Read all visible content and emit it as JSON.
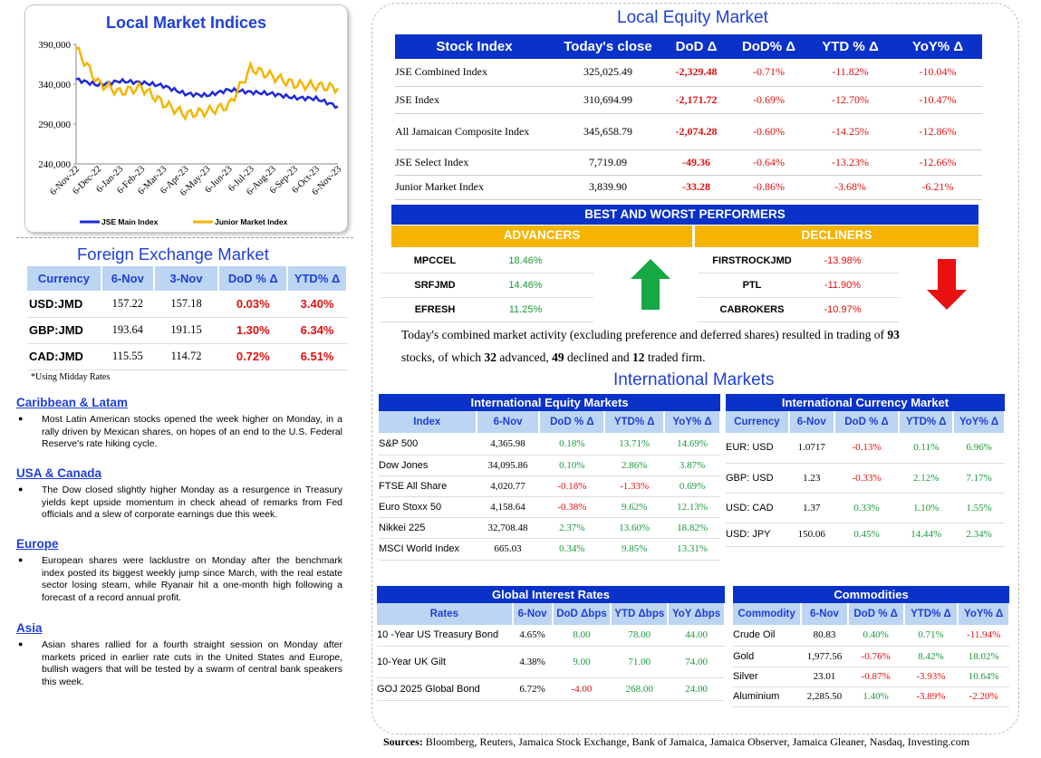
{
  "chart_data": {
    "type": "line",
    "title": "Local Market Indices",
    "categories": [
      "6-Nov-22",
      "6-Dec-22",
      "6-Jan-23",
      "6-Feb-23",
      "6-Mar-23",
      "6-Apr-23",
      "6-May-23",
      "6-Jun-23",
      "6-Jul-23",
      "6-Aug-23",
      "6-Sep-23",
      "6-Oct-23",
      "6-Nov-23"
    ],
    "yticks": [
      "390,000",
      "340,000",
      "290,000",
      "240,000"
    ],
    "ylim": [
      240000,
      390000
    ],
    "series": [
      {
        "name": "JSE Main Index",
        "color": "#1f2ad4",
        "values": [
          346000,
          339000,
          344000,
          342000,
          338000,
          328000,
          326000,
          333000,
          330000,
          328000,
          323000,
          322000,
          312000
        ]
      },
      {
        "name": "Junior Market Index",
        "color": "#f5b400",
        "values": [
          385000,
          342000,
          330000,
          336000,
          316000,
          302000,
          306000,
          313000,
          360000,
          350000,
          340000,
          338000,
          335000
        ]
      }
    ]
  },
  "fx": {
    "title": "Foreign Exchange Market",
    "headers": [
      "Currency",
      "6-Nov",
      "3-Nov",
      "DoD % Δ",
      "YTD% Δ"
    ],
    "rows": [
      {
        "c": "USD:JMD",
        "a": "157.22",
        "b": "157.18",
        "d": "0.03%",
        "y": "3.40%"
      },
      {
        "c": "GBP:JMD",
        "a": "193.64",
        "b": "191.15",
        "d": "1.30%",
        "y": "6.34%"
      },
      {
        "c": "CAD:JMD",
        "a": "115.55",
        "b": "114.72",
        "d": "0.72%",
        "y": "6.51%"
      }
    ],
    "note": "*Using Midday Rates"
  },
  "news": [
    {
      "h": "Caribbean & Latam",
      "t": "Most Latin American stocks opened the week higher on Monday, in a rally driven by Mexican shares, on hopes of an end to the U.S. Federal Reserve's rate hiking cycle."
    },
    {
      "h": "USA & Canada",
      "t": "The Dow closed slightly higher Monday as a resurgence in Treasury yields kept upside momentum in check ahead of remarks from Fed officials and a slew of corporate earnings due this week."
    },
    {
      "h": "Europe",
      "t": "European shares were lacklustre on Monday after the benchmark index posted its biggest weekly jump since March, with the real estate sector losing steam, while Ryanair hit a one-month high following a forecast of a record annual profit."
    },
    {
      "h": "Asia",
      "t": "Asian shares rallied for a fourth straight session on Monday after markets priced in earlier rate cuts in the United States and Europe, bullish wagers that will be tested by a swarm of central bank speakers this week."
    }
  ],
  "equity": {
    "title": "Local Equity Market",
    "headers": [
      "Stock Index",
      "Today's close",
      "DoD  Δ",
      "DoD% Δ",
      "YTD % Δ",
      "YoY% Δ"
    ],
    "rows": [
      {
        "n": "JSE Combined Index",
        "c": "325,025.49",
        "d": "-2,329.48",
        "p": "-0.71%",
        "y": "-11.82%",
        "o": "-10.04%"
      },
      {
        "n": "JSE Index",
        "c": "310,694.99",
        "d": "-2,171.72",
        "p": "-0.69%",
        "y": "-12.70%",
        "o": "-10.47%"
      },
      {
        "n": "All Jamaican Composite Index",
        "c": "345,658.79",
        "d": "-2,074.28",
        "p": "-0.60%",
        "y": "-14.25%",
        "o": "-12.86%"
      },
      {
        "n": "JSE Select Index",
        "c": "7,719.09",
        "d": "-49.36",
        "p": "-0.64%",
        "y": "-13.23%",
        "o": "-12.66%"
      },
      {
        "n": "Junior Market Index",
        "c": "3,839.90",
        "d": "-33.28",
        "p": "-0.86%",
        "y": "-3.68%",
        "o": "-6.21%"
      }
    ]
  },
  "performers": {
    "title": "BEST AND WORST PERFORMERS",
    "adv_label": "ADVANCERS",
    "dec_label": "DECLINERS",
    "advancers": [
      {
        "n": "MPCCEL",
        "v": "18.46%"
      },
      {
        "n": "SRFJMD",
        "v": "14.46%"
      },
      {
        "n": "EFRESH",
        "v": "11.25%"
      }
    ],
    "decliners": [
      {
        "n": "FIRSTROCKJMD",
        "v": "-13.98%"
      },
      {
        "n": "PTL",
        "v": "-11.90%"
      },
      {
        "n": "CABROKERS",
        "v": "-10.97%"
      }
    ]
  },
  "summary": {
    "s1": "Today's combined market activity (excluding preference and deferred shares) resulted in trading of ",
    "total": "93",
    "s2": "stocks, of which ",
    "adv": "32",
    "s3": " advanced, ",
    "dec": "49",
    "s4": " declined and ",
    "firm": "12",
    "s5": " traded firm."
  },
  "intl_title": "International Markets",
  "ieq": {
    "title": "International Equity Markets",
    "headers": [
      "Index",
      "6-Nov",
      "DoD % Δ",
      "YTD% Δ",
      "YoY% Δ"
    ],
    "rows": [
      {
        "n": "S&P 500",
        "v": "4,365.98",
        "d": "0.18%",
        "y": "13.71%",
        "o": "14.69%"
      },
      {
        "n": "Dow Jones",
        "v": "34,095.86",
        "d": "0.10%",
        "y": "2.86%",
        "o": "3.87%"
      },
      {
        "n": "FTSE All Share",
        "v": "4,020.77",
        "d": "-0.18%",
        "y": "-1.33%",
        "o": "0.69%"
      },
      {
        "n": "Euro Stoxx 50",
        "v": "4,158.64",
        "d": "-0.38%",
        "y": "9.62%",
        "o": "12.13%"
      },
      {
        "n": "Nikkei 225",
        "v": "32,708.48",
        "d": "2.37%",
        "y": "13.60%",
        "o": "18.82%"
      },
      {
        "n": "MSCI World Index",
        "v": "665.03",
        "d": "0.34%",
        "y": "9.85%",
        "o": "13.31%"
      }
    ]
  },
  "icur": {
    "title": "International Currency Market",
    "headers": [
      "Currency",
      "6-Nov",
      "DoD % Δ",
      "YTD% Δ",
      "YoY% Δ"
    ],
    "rows": [
      {
        "n": "EUR: USD",
        "v": "1.0717",
        "d": "-0.13%",
        "y": "0.11%",
        "o": "6.96%"
      },
      {
        "n": "GBP: USD",
        "v": "1.23",
        "d": "-0.33%",
        "y": "2.12%",
        "o": "7.17%"
      },
      {
        "n": "USD: CAD",
        "v": "1.37",
        "d": "0.33%",
        "y": "1.10%",
        "o": "1.55%"
      },
      {
        "n": "USD: JPY",
        "v": "150.06",
        "d": "0.45%",
        "y": "14.44%",
        "o": "2.34%"
      }
    ]
  },
  "rates": {
    "title": "Global Interest Rates",
    "headers": [
      "Rates",
      "6-Nov",
      "DoD Δbps",
      "YTD Δbps",
      "YoY Δbps"
    ],
    "rows": [
      {
        "n": "10 -Year US Treasury Bond",
        "v": "4.65%",
        "d": "8.00",
        "y": "78.00",
        "o": "44.00"
      },
      {
        "n": "10-Year UK Gilt",
        "v": "4.38%",
        "d": "9.00",
        "y": "71.00",
        "o": "74.00"
      },
      {
        "n": "GOJ 2025 Global Bond",
        "v": "6.72%",
        "d": "-4.00",
        "y": "268.00",
        "o": "24.00"
      }
    ]
  },
  "comm": {
    "title": "Commodities",
    "headers": [
      "Commodity",
      "6-Nov",
      "DoD % Δ",
      "YTD% Δ",
      "YoY% Δ"
    ],
    "rows": [
      {
        "n": "Crude Oil",
        "v": "80.83",
        "d": "0.40%",
        "y": "0.71%",
        "o": "-11.94%"
      },
      {
        "n": "Gold",
        "v": "1,977.56",
        "d": "-0.76%",
        "y": "8.42%",
        "o": "18.02%"
      },
      {
        "n": "Silver",
        "v": "23.01",
        "d": "-0.87%",
        "y": "-3.93%",
        "o": "10.64%"
      },
      {
        "n": "Aluminium",
        "v": "2,285.50",
        "d": "1.40%",
        "y": "-3.89%",
        "o": "-2.20%"
      }
    ]
  },
  "sources_label": "Sources:",
  "sources": " Bloomberg, Reuters, Jamaica Stock Exchange, Bank of Jamaica, Jamaica Observer, Jamaica Gleaner, Nasdaq, Investing.com"
}
